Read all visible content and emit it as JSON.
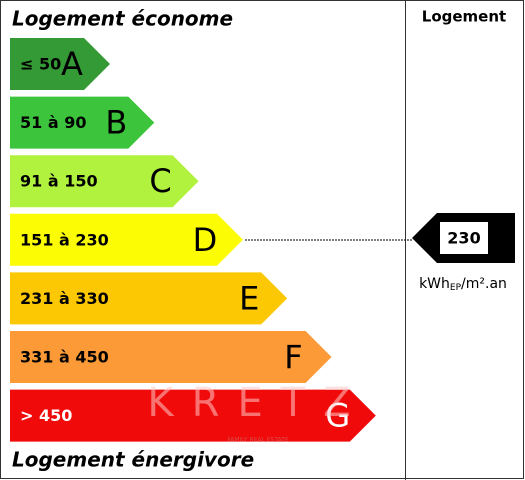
{
  "header": {
    "title_top": "Logement économe",
    "column": "Logement",
    "title_bottom": "Logement énergivore"
  },
  "classes": [
    {
      "range": "≤ 50",
      "letter": "A",
      "color": "#339a35",
      "text_color": "#000000"
    },
    {
      "range": "51 à 90",
      "letter": "B",
      "color": "#3cc43c",
      "text_color": "#000000"
    },
    {
      "range": "91 à 150",
      "letter": "C",
      "color": "#b0f23d",
      "text_color": "#000000"
    },
    {
      "range": "151 à 230",
      "letter": "D",
      "color": "#fcfc04",
      "text_color": "#000000"
    },
    {
      "range": "231 à 330",
      "letter": "E",
      "color": "#fcc804",
      "text_color": "#000000"
    },
    {
      "range": "331 à 450",
      "letter": "F",
      "color": "#fb9a36",
      "text_color": "#000000"
    },
    {
      "range": "> 450",
      "letter": "G",
      "color": "#f00a0a",
      "text_color": "#ffffff"
    }
  ],
  "indicator": {
    "value": "230",
    "unit": "kWh",
    "unit_sub": "EP",
    "unit_rest": "/m².an"
  },
  "watermark": {
    "brand": "KRETZ",
    "tagline": "FAMILY REAL ESTATE"
  }
}
